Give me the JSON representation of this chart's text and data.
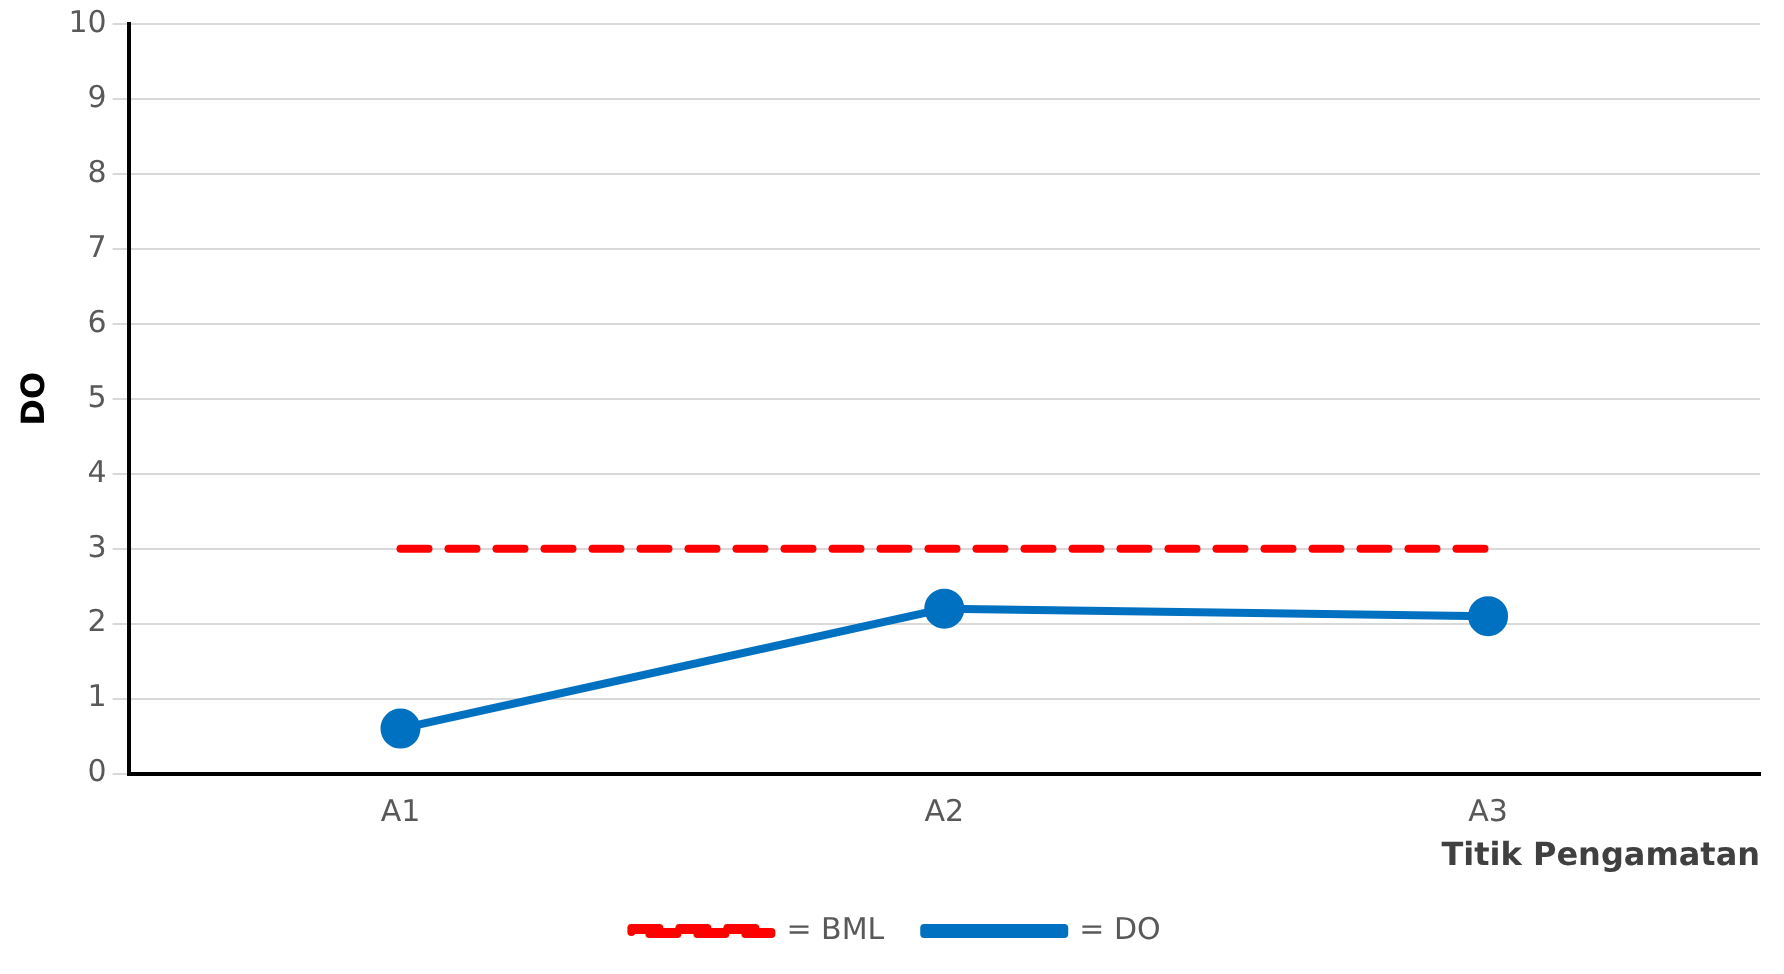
{
  "chart_data": {
    "type": "line",
    "xlabel": "Titik Pengamatan",
    "ylabel": "DO",
    "categories": [
      "A1",
      "A2",
      "A3"
    ],
    "series": [
      {
        "name": "= BML",
        "color": "#ff0000",
        "values": [
          3,
          3,
          3
        ],
        "line_style": "dashed",
        "marker": "none"
      },
      {
        "name": "= DO",
        "color": "#0070c0",
        "values": [
          0.6,
          2.2,
          2.1
        ],
        "line_style": "solid",
        "marker": "circle"
      }
    ],
    "ylim": [
      0,
      10
    ],
    "yticks": [
      0,
      1,
      2,
      3,
      4,
      5,
      6,
      7,
      8,
      9,
      10
    ],
    "grid": "y",
    "legend": "bottom"
  }
}
